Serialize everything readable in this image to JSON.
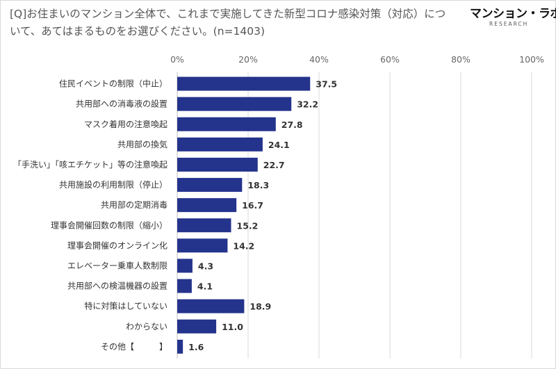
{
  "logo": {
    "name": "マンション・ラボ",
    "sub": "RESEARCH"
  },
  "colors": {
    "bar": "#24338c"
  },
  "chart_data": {
    "type": "bar",
    "orientation": "horizontal",
    "title": "[Q]お住まいのマンション全体で、これまで実施してきた新型コロナ感染対策（対応）について、あてはまるものをお選びください。(n=1403)",
    "categories": [
      "住民イベントの制限（中止）",
      "共用部への消毒液の設置",
      "マスク着用の注意喚起",
      "共用部の換気",
      "「手洗い」「咳エチケット」等の注意喚起",
      "共用施設の利用制限（停止）",
      "共用部の定期消毒",
      "理事会開催回数の制限（縮小）",
      "理事会開催のオンライン化",
      "エレベーター乗車人数制限",
      "共用部への検温機器の設置",
      "特に対策はしていない",
      "わからない",
      "その他【　　　】"
    ],
    "values": [
      37.5,
      32.2,
      27.8,
      24.1,
      22.7,
      18.3,
      16.7,
      15.2,
      14.2,
      4.3,
      4.1,
      18.9,
      11.0,
      1.6
    ],
    "value_labels": [
      "37.5",
      "32.2",
      "27.8",
      "24.1",
      "22.7",
      "18.3",
      "16.7",
      "15.2",
      "14.2",
      "4.3",
      "4.1",
      "18.9",
      "11.0",
      "1.6"
    ],
    "xlim": [
      0,
      100
    ],
    "xticks": [
      0,
      20,
      40,
      60,
      80,
      100
    ],
    "xtick_labels": [
      "0%",
      "20%",
      "40%",
      "60%",
      "80%",
      "100%"
    ],
    "xaxis_position": "top",
    "grid": true,
    "legend": "none"
  }
}
